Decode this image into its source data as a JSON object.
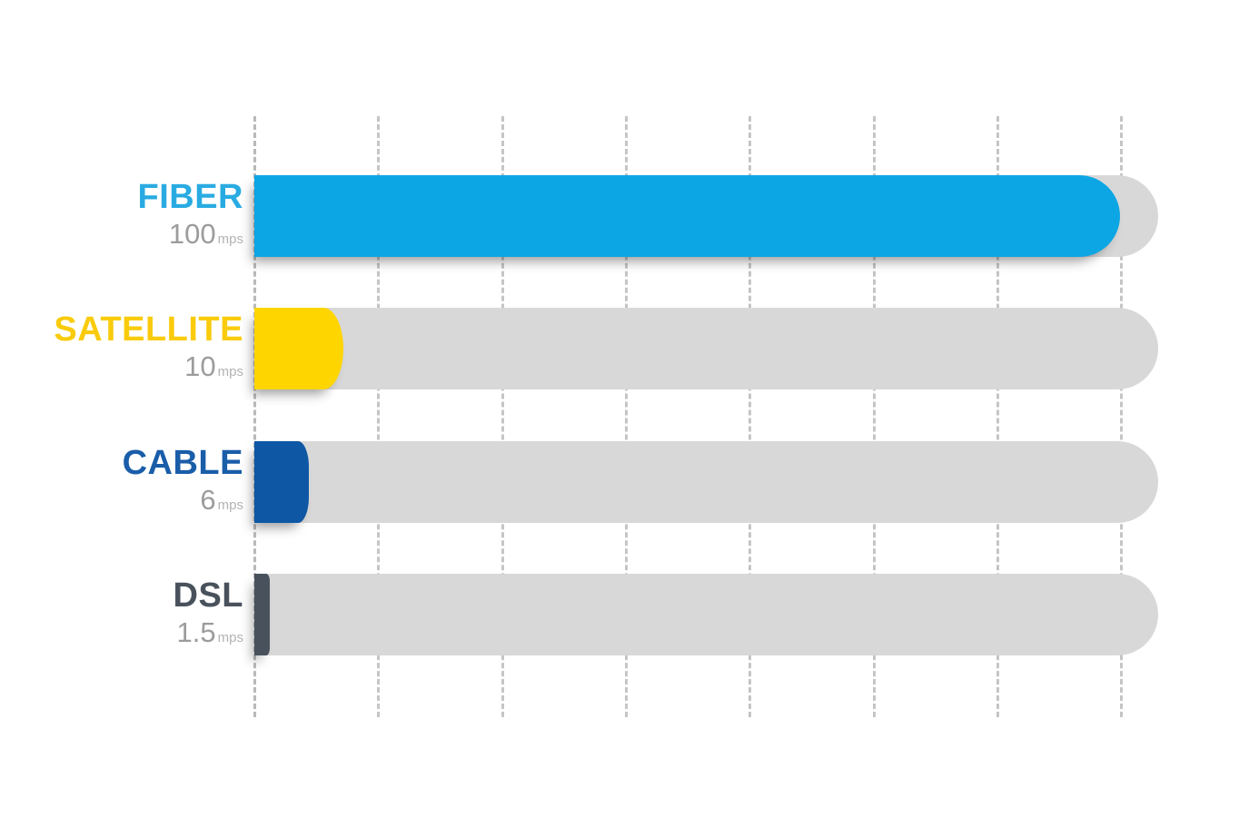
{
  "chart_data": {
    "type": "bar",
    "orientation": "horizontal",
    "title": "",
    "unit": "mps",
    "categories": [
      "FIBER",
      "SATELLITE",
      "CABLE",
      "DSL"
    ],
    "values": [
      100,
      10,
      6,
      1.5
    ],
    "xlim": [
      0,
      100
    ],
    "grid": {
      "shown": true,
      "style": "dashed-vertical",
      "line_count": 8,
      "color": "#c5c5c5"
    },
    "legend": "none",
    "rows": [
      {
        "label": "FIBER",
        "value": "100",
        "unit": "mps",
        "numeric_value": 100,
        "label_color": "#29abe2",
        "bar_color": "#0da6e4"
      },
      {
        "label": "SATELLITE",
        "value": "10",
        "unit": "mps",
        "numeric_value": 10,
        "label_color": "#f9cb0b",
        "bar_color": "#ffd500"
      },
      {
        "label": "CABLE",
        "value": "6",
        "unit": "mps",
        "numeric_value": 6,
        "label_color": "#1a5da9",
        "bar_color": "#0e57a5"
      },
      {
        "label": "DSL",
        "value": "1.5",
        "unit": "mps",
        "numeric_value": 1.5,
        "label_color": "#49525c",
        "bar_color": "#49525c"
      }
    ]
  },
  "colors": {
    "background": "#ffffff",
    "track": "#d8d8d8",
    "gridline": "#c5c5c5",
    "value_text": "#9c9c9c",
    "unit_text": "#b3b3b3"
  }
}
